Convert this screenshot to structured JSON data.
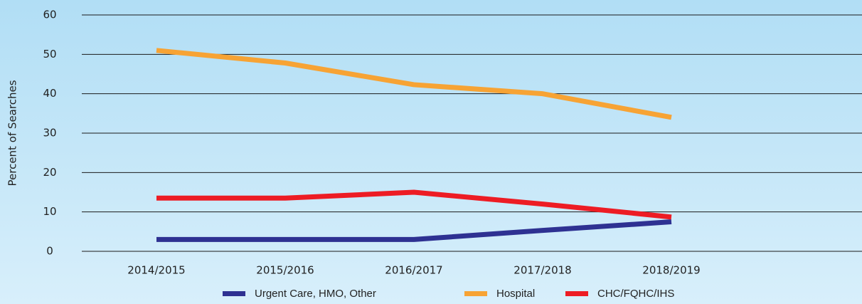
{
  "chart_data": {
    "type": "line",
    "y_label": "Percent of Searches",
    "categories": [
      "2014/2015",
      "2015/2016",
      "2016/2017",
      "2017/2018",
      "2018/2019"
    ],
    "series": [
      {
        "name": "Urgent Care, HMO, Other",
        "color": "#2e3192",
        "values": [
          3,
          3,
          3,
          5.3,
          7.5
        ]
      },
      {
        "name": "Hospital",
        "color": "#f7a334",
        "values": [
          51,
          47.8,
          42.3,
          40,
          34
        ]
      },
      {
        "name": "CHC/FQHC/IHS",
        "color": "#ed1c24",
        "values": [
          13.5,
          13.5,
          15,
          12,
          8.7
        ]
      }
    ],
    "ylim": [
      0,
      60
    ],
    "yticks": [
      0,
      10,
      20,
      30,
      40,
      50,
      60
    ],
    "grid": true
  }
}
